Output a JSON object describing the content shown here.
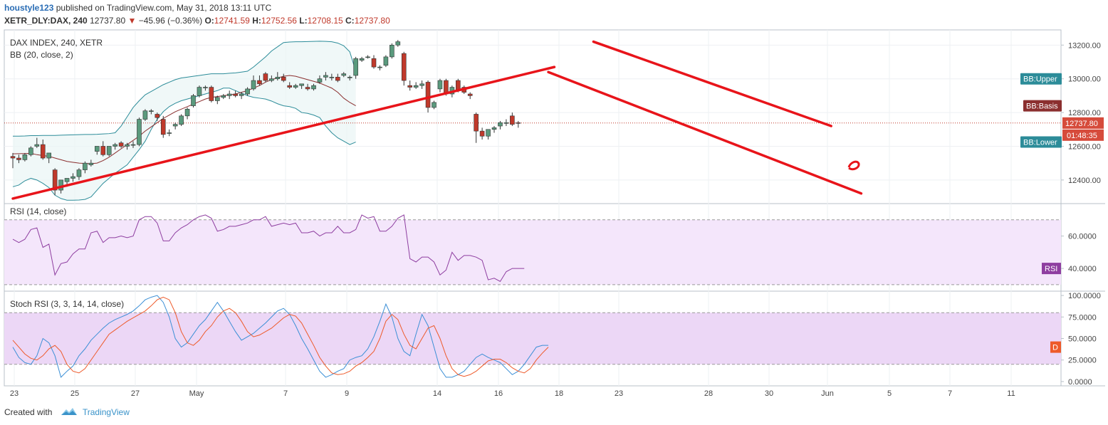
{
  "header": {
    "author": "houstyle123",
    "published_text": "published on TradingView.com, May 31, 2018 13:11 UTC",
    "symbol": "XETR_DLY:DAX, 240",
    "last": "12737.80",
    "change": "−45.96 (−0.36%)",
    "o_label": "O:",
    "o": "12741.59",
    "h_label": "H:",
    "h": "12752.56",
    "l_label": "L:",
    "l": "12708.15",
    "c_label": "C:",
    "c": "12737.80"
  },
  "footer": {
    "created_with": "Created with",
    "brand": "TradingView"
  },
  "colors": {
    "up_candle": "#5a9a7d",
    "down_candle": "#c0392b",
    "bb_band": "#2c8c99",
    "bb_basis": "#8b2f2f",
    "rsi": "#8e3ea0",
    "stoch_k": "#3b8fd6",
    "stoch_d": "#ee5a2a",
    "drawing": "#e8141a"
  },
  "chart_data": [
    {
      "type": "candlestick",
      "title": "DAX INDEX, 240, XETR",
      "indicator": "BB (20, close, 2)",
      "x_labels": [
        "23",
        "25",
        "27",
        "May",
        "7",
        "9",
        "14",
        "16",
        "18",
        "23",
        "28",
        "30",
        "Jun",
        "5",
        "7",
        "11"
      ],
      "ylim": [
        12260,
        13290
      ],
      "yticks": [
        "12400.00",
        "12600.00",
        "12800.00",
        "13000.00",
        "13200.00"
      ],
      "last_price_label": "12737.80",
      "countdown_label": "01:48:35",
      "series_labels": {
        "upper": "BB:Upper",
        "basis": "BB:Basis",
        "lower": "BB:Lower"
      },
      "candles": [
        [
          12540,
          12560,
          12470,
          12530
        ],
        [
          12530,
          12550,
          12500,
          12520
        ],
        [
          12520,
          12560,
          12510,
          12550
        ],
        [
          12550,
          12600,
          12540,
          12590
        ],
        [
          12600,
          12650,
          12590,
          12610
        ],
        [
          12610,
          12640,
          12520,
          12530
        ],
        [
          12530,
          12560,
          12500,
          12560
        ],
        [
          12460,
          12470,
          12310,
          12340
        ],
        [
          12340,
          12400,
          12320,
          12400
        ],
        [
          12390,
          12410,
          12360,
          12410
        ],
        [
          12410,
          12440,
          12390,
          12420
        ],
        [
          12420,
          12470,
          12400,
          12460
        ],
        [
          12460,
          12510,
          12440,
          12500
        ],
        [
          12490,
          12520,
          12480,
          12500
        ],
        [
          12570,
          12600,
          12550,
          12600
        ],
        [
          12600,
          12630,
          12540,
          12550
        ],
        [
          12550,
          12600,
          12540,
          12600
        ],
        [
          12600,
          12620,
          12580,
          12610
        ],
        [
          12620,
          12630,
          12590,
          12600
        ],
        [
          12600,
          12620,
          12580,
          12610
        ],
        [
          12610,
          12630,
          12590,
          12610
        ],
        [
          12610,
          12770,
          12600,
          12760
        ],
        [
          12760,
          12820,
          12750,
          12810
        ],
        [
          12810,
          12820,
          12790,
          12810
        ],
        [
          12790,
          12800,
          12750,
          12770
        ],
        [
          12760,
          12780,
          12650,
          12670
        ],
        [
          12680,
          12700,
          12660,
          12680
        ],
        [
          12720,
          12740,
          12700,
          12730
        ],
        [
          12730,
          12790,
          12720,
          12780
        ],
        [
          12780,
          12830,
          12760,
          12820
        ],
        [
          12840,
          12910,
          12830,
          12900
        ],
        [
          12900,
          12960,
          12890,
          12950
        ],
        [
          12950,
          12960,
          12930,
          12950
        ],
        [
          12950,
          12960,
          12860,
          12870
        ],
        [
          12870,
          12900,
          12850,
          12890
        ],
        [
          12890,
          12910,
          12880,
          12900
        ],
        [
          12900,
          12930,
          12880,
          12910
        ],
        [
          12910,
          12930,
          12890,
          12900
        ],
        [
          12900,
          12920,
          12880,
          12910
        ],
        [
          12910,
          12950,
          12900,
          12940
        ],
        [
          12940,
          13020,
          12930,
          12990
        ],
        [
          12990,
          13020,
          12960,
          12970
        ],
        [
          13030,
          13040,
          12980,
          12990
        ],
        [
          12990,
          13020,
          12980,
          13000
        ],
        [
          13000,
          13040,
          12990,
          13010
        ],
        [
          13010,
          13030,
          12980,
          12990
        ],
        [
          12960,
          12980,
          12940,
          12950
        ],
        [
          12950,
          12970,
          12940,
          12960
        ],
        [
          12960,
          12970,
          12940,
          12970
        ],
        [
          12950,
          12970,
          12930,
          12940
        ],
        [
          12940,
          12970,
          12930,
          12960
        ],
        [
          12980,
          13020,
          12970,
          13000
        ],
        [
          13010,
          13040,
          12990,
          13020
        ],
        [
          13010,
          13030,
          12990,
          13010
        ],
        [
          13010,
          13030,
          12980,
          12990
        ],
        [
          13020,
          13040,
          13010,
          13030
        ],
        [
          13010,
          13020,
          12990,
          13010
        ],
        [
          13020,
          13130,
          13000,
          13120
        ],
        [
          13110,
          13130,
          13100,
          13120
        ],
        [
          13130,
          13140,
          13120,
          13130
        ],
        [
          13120,
          13140,
          13060,
          13070
        ],
        [
          13070,
          13080,
          13050,
          13070
        ],
        [
          13080,
          13140,
          13070,
          13130
        ],
        [
          13130,
          13210,
          13120,
          13200
        ],
        [
          13200,
          13230,
          13190,
          13220
        ],
        [
          13150,
          13160,
          12960,
          12990
        ],
        [
          12960,
          12990,
          12930,
          12950
        ],
        [
          12950,
          12980,
          12940,
          12960
        ],
        [
          12960,
          12990,
          12940,
          12970
        ],
        [
          12980,
          12990,
          12800,
          12830
        ],
        [
          12830,
          12870,
          12820,
          12860
        ],
        [
          12940,
          13000,
          12920,
          12990
        ],
        [
          12990,
          13000,
          12900,
          12910
        ],
        [
          12910,
          12960,
          12890,
          12950
        ],
        [
          12990,
          13000,
          12920,
          12930
        ],
        [
          12950,
          12960,
          12910,
          12920
        ],
        [
          12910,
          12920,
          12880,
          12900
        ],
        [
          12790,
          12800,
          12620,
          12690
        ],
        [
          12690,
          12710,
          12640,
          12660
        ],
        [
          12660,
          12700,
          12640,
          12700
        ],
        [
          12700,
          12720,
          12680,
          12710
        ],
        [
          12720,
          12750,
          12700,
          12740
        ],
        [
          12740,
          12760,
          12720,
          12740
        ],
        [
          12780,
          12800,
          12720,
          12730
        ],
        [
          12740,
          12750,
          12710,
          12738
        ]
      ],
      "bb_upper": [
        12660,
        12660,
        12661,
        12663,
        12663,
        12664,
        12664,
        12664,
        12666,
        12667,
        12668,
        12669,
        12670,
        12670,
        12671,
        12673,
        12675,
        12680,
        12720,
        12775,
        12830,
        12870,
        12905,
        12925,
        12945,
        12965,
        12980,
        12995,
        13005,
        13010,
        13015,
        13020,
        13025,
        13030,
        13030,
        13030,
        13033,
        13035,
        13040,
        13045,
        13070,
        13100,
        13130,
        13165,
        13190,
        13215,
        13218,
        13220,
        13220,
        13221,
        13222,
        13223,
        13222,
        13220,
        13212,
        13196,
        13160,
        13045
      ],
      "bb_basis": [
        12555,
        12556,
        12557,
        12558,
        12550,
        12545,
        12540,
        12530,
        12520,
        12510,
        12505,
        12500,
        12498,
        12497,
        12500,
        12515,
        12535,
        12560,
        12585,
        12610,
        12635,
        12660,
        12690,
        12715,
        12740,
        12765,
        12785,
        12805,
        12820,
        12835,
        12850,
        12865,
        12880,
        12890,
        12895,
        12900,
        12905,
        12910,
        12920,
        12930,
        12945,
        12960,
        12980,
        12995,
        13005,
        13015,
        13020,
        13015,
        13005,
        12995,
        12985,
        12975,
        12960,
        12945,
        12920,
        12885,
        12860,
        12840
      ],
      "bb_lower": [
        12360,
        12370,
        12395,
        12410,
        12400,
        12380,
        12355,
        12310,
        12290,
        12280,
        12280,
        12281,
        12285,
        12300,
        12340,
        12380,
        12410,
        12440,
        12465,
        12490,
        12535,
        12580,
        12630,
        12700,
        12760,
        12805,
        12835,
        12855,
        12870,
        12880,
        12890,
        12900,
        12910,
        12920,
        12930,
        12945,
        12945,
        12930,
        12915,
        12900,
        12890,
        12885,
        12880,
        12868,
        12852,
        12840,
        12835,
        12825,
        12800,
        12795,
        12785,
        12770,
        12720,
        12680,
        12650,
        12630,
        12610,
        12625
      ],
      "drawings": [
        {
          "from": [
            0,
            12290
          ],
          "to": [
            90,
            13070
          ]
        },
        {
          "from": [
            96.5,
            13220
          ],
          "to": [
            136,
            12720
          ]
        },
        {
          "from": [
            89,
            13040
          ],
          "to": [
            141,
            12320
          ]
        }
      ]
    },
    {
      "type": "line",
      "title": "RSI (14, close)",
      "series_label": "RSI",
      "ylim": [
        26,
        80
      ],
      "bands": [
        30,
        70
      ],
      "yticks": [
        "40.0000",
        "60.0000"
      ],
      "values": [
        58,
        56,
        58,
        64,
        65,
        53,
        55,
        36,
        43,
        44,
        49,
        52,
        52,
        62,
        63,
        56,
        59,
        59,
        60,
        59,
        60,
        70,
        72,
        72,
        68,
        57,
        57,
        62,
        65,
        67,
        70,
        72,
        73,
        71,
        63,
        64,
        66,
        66,
        67,
        68,
        70,
        70,
        72,
        66,
        67,
        68,
        67,
        68,
        62,
        62,
        63,
        60,
        62,
        62,
        66,
        62,
        62,
        64,
        73,
        71,
        72,
        63,
        63,
        66,
        71,
        73,
        46,
        44,
        47,
        47,
        44,
        36,
        39,
        50,
        45,
        48,
        48,
        47,
        45,
        33,
        34,
        32,
        38,
        40,
        40,
        40
      ]
    },
    {
      "type": "line",
      "title": "Stoch RSI (3, 3, 14, 14, close)",
      "series_label": "D",
      "ylim": [
        -5,
        105
      ],
      "bands": [
        20,
        80
      ],
      "yticks": [
        "0.0000",
        "25.0000",
        "50.0000",
        "75.0000",
        "100.0000"
      ],
      "series": [
        {
          "values": [
            40,
            28,
            22,
            20,
            30,
            50,
            45,
            30,
            5,
            12,
            18,
            30,
            38,
            48,
            55,
            62,
            68,
            72,
            75,
            78,
            82,
            88,
            95,
            98,
            100,
            92,
            75,
            50,
            40,
            45,
            55,
            65,
            72,
            82,
            92,
            82,
            70,
            58,
            48,
            52,
            56,
            62,
            68,
            75,
            82,
            85,
            78,
            65,
            50,
            38,
            25,
            12,
            5,
            8,
            12,
            15,
            25,
            28,
            30,
            38,
            52,
            70,
            90,
            75,
            50,
            35,
            30,
            55,
            78,
            65,
            40,
            15,
            5,
            5,
            8,
            12,
            20,
            28,
            32,
            28,
            25,
            22,
            15,
            8,
            12,
            20,
            30,
            40,
            42,
            42
          ]
        },
        {
          "values": [
            48,
            40,
            32,
            27,
            25,
            30,
            38,
            42,
            35,
            20,
            12,
            10,
            15,
            25,
            35,
            45,
            55,
            60,
            65,
            70,
            74,
            78,
            82,
            88,
            95,
            98,
            95,
            80,
            58,
            45,
            42,
            48,
            58,
            65,
            75,
            82,
            85,
            80,
            70,
            58,
            52,
            54,
            58,
            62,
            68,
            74,
            78,
            76,
            68,
            55,
            42,
            28,
            18,
            10,
            8,
            9,
            12,
            18,
            22,
            28,
            35,
            50,
            70,
            78,
            72,
            55,
            42,
            38,
            50,
            62,
            65,
            50,
            30,
            15,
            8,
            6,
            8,
            12,
            18,
            24,
            26,
            26,
            22,
            16,
            12,
            10,
            15,
            25,
            33,
            40
          ]
        }
      ]
    }
  ]
}
